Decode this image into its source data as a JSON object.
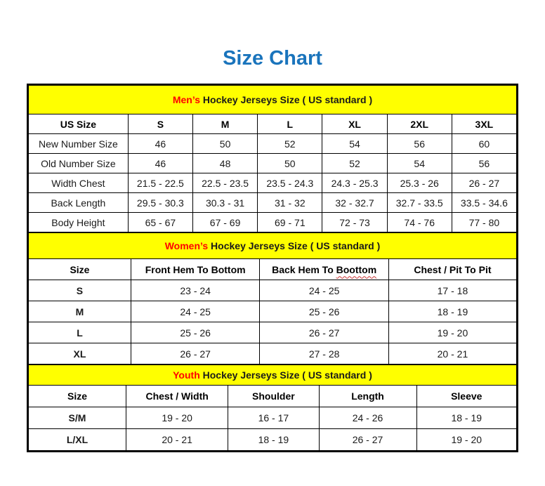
{
  "page": {
    "title": "Size Chart",
    "title_color": "#1a74bc",
    "band_bg_color": "#ffff00",
    "band_highlight_color": "#ff0000"
  },
  "tables": [
    {
      "name": "mens",
      "band": {
        "highlight": "Men’s",
        "rest": " Hockey Jerseys Size ( US standard )"
      },
      "columns": [
        "US Size",
        "S",
        "M",
        "L",
        "XL",
        "2XL",
        "3XL"
      ],
      "bold_row_labels": false,
      "rows": [
        [
          "New Number Size",
          "46",
          "50",
          "52",
          "54",
          "56",
          "60"
        ],
        [
          "Old Number Size",
          "46",
          "48",
          "50",
          "52",
          "54",
          "56"
        ],
        [
          "Width Chest",
          "21.5 - 22.5",
          "22.5 - 23.5",
          "23.5 - 24.3",
          "24.3 - 25.3",
          "25.3 - 26",
          "26 - 27"
        ],
        [
          "Back Length",
          "29.5 - 30.3",
          "30.3 - 31",
          "31 - 32",
          "32 - 32.7",
          "32.7 - 33.5",
          "33.5 - 34.6"
        ],
        [
          "Body Height",
          "65 - 67",
          "67 - 69",
          "69 - 71",
          "72 - 73",
          "74 - 76",
          "77 - 80"
        ]
      ]
    },
    {
      "name": "womens",
      "band": {
        "highlight": "Women’s",
        "rest": " Hockey Jerseys Size ( US standard )"
      },
      "columns": [
        "Size",
        "Front Hem To Bottom",
        {
          "label": "Back Hem To ",
          "wavy": "Boottom"
        },
        "Chest / Pit To Pit"
      ],
      "bold_row_labels": true,
      "rows": [
        [
          "S",
          "23 - 24",
          "24 - 25",
          "17 - 18"
        ],
        [
          "M",
          "24 - 25",
          "25 - 26",
          "18 - 19"
        ],
        [
          "L",
          "25 - 26",
          "26 - 27",
          "19 - 20"
        ],
        [
          "XL",
          "26 - 27",
          "27 - 28",
          "20 - 21"
        ]
      ]
    },
    {
      "name": "youth",
      "band": {
        "highlight": "Youth",
        "rest": " Hockey Jerseys Size ( US standard )"
      },
      "columns": [
        "Size",
        "Chest / Width",
        "Shoulder",
        "Length",
        "Sleeve"
      ],
      "bold_row_labels": true,
      "rows": [
        [
          "S/M",
          "19 - 20",
          "16 - 17",
          "24 - 26",
          "18 - 19"
        ],
        [
          "L/XL",
          "20 - 21",
          "18 - 19",
          "26 - 27",
          "19 - 20"
        ]
      ]
    }
  ]
}
